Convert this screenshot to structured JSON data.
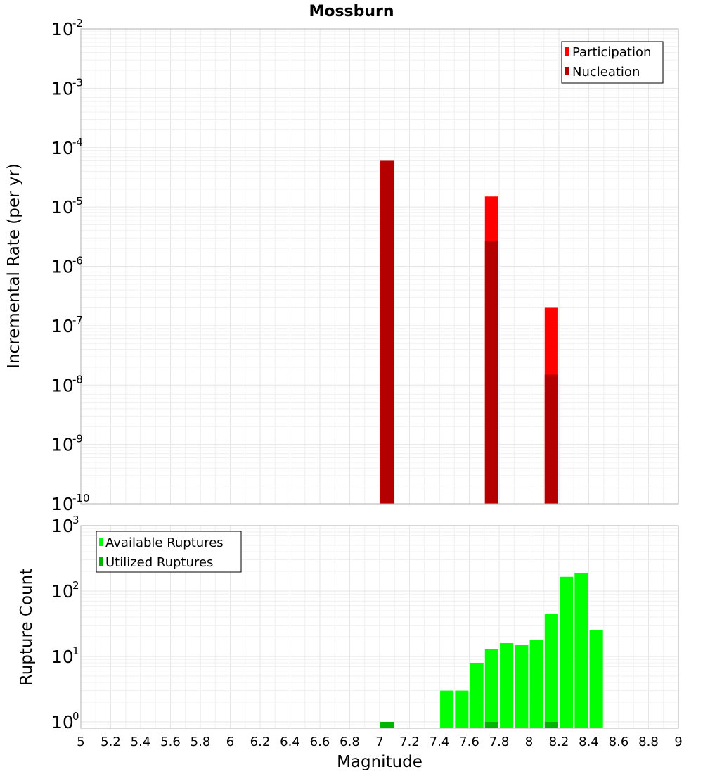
{
  "chart_data": [
    {
      "type": "bar",
      "title": "Mossburn",
      "ylabel": "Incremental Rate (per yr)",
      "yscale": "log",
      "ylim": [
        1e-10,
        0.01
      ],
      "xlim": [
        5,
        9
      ],
      "bar_width": 0.09,
      "grid": true,
      "legend_position": "top-right",
      "ytick_exponents": [
        "-10",
        "-9",
        "-8",
        "-7",
        "-6",
        "-5",
        "-4",
        "-3",
        "-2"
      ],
      "series": [
        {
          "name": "Participation",
          "color": "#ff0000",
          "points": [
            {
              "x": 7.05,
              "y": 6e-05
            },
            {
              "x": 7.75,
              "y": 1.5e-05
            },
            {
              "x": 8.15,
              "y": 2e-07
            }
          ]
        },
        {
          "name": "Nucleation",
          "color": "#b40000",
          "points": [
            {
              "x": 7.05,
              "y": 6e-05
            },
            {
              "x": 7.75,
              "y": 2.7e-06
            },
            {
              "x": 8.15,
              "y": 1.5e-08
            }
          ]
        }
      ]
    },
    {
      "type": "bar",
      "xlabel": "Magnitude",
      "ylabel": "Rupture Count",
      "yscale": "log",
      "ylim": [
        0.8,
        1000
      ],
      "xlim": [
        5,
        9
      ],
      "bar_width": 0.09,
      "grid": true,
      "legend_position": "top-left",
      "xticks": [
        "5",
        "5.2",
        "5.4",
        "5.6",
        "5.8",
        "6",
        "6.2",
        "6.4",
        "6.6",
        "6.8",
        "7",
        "7.2",
        "7.4",
        "7.6",
        "7.8",
        "8",
        "8.2",
        "8.4",
        "8.6",
        "8.8",
        "9"
      ],
      "ytick_exponents": [
        "0",
        "1",
        "2",
        "3"
      ],
      "series": [
        {
          "name": "Available Ruptures",
          "color": "#00ff00",
          "points": [
            {
              "x": 7.05,
              "y": 1
            },
            {
              "x": 7.45,
              "y": 3
            },
            {
              "x": 7.55,
              "y": 3
            },
            {
              "x": 7.65,
              "y": 8
            },
            {
              "x": 7.75,
              "y": 13
            },
            {
              "x": 7.85,
              "y": 16
            },
            {
              "x": 7.95,
              "y": 15
            },
            {
              "x": 8.05,
              "y": 18
            },
            {
              "x": 8.15,
              "y": 45
            },
            {
              "x": 8.25,
              "y": 165
            },
            {
              "x": 8.35,
              "y": 190
            },
            {
              "x": 8.45,
              "y": 25
            }
          ]
        },
        {
          "name": "Utilized Ruptures",
          "color": "#00b400",
          "points": [
            {
              "x": 7.05,
              "y": 1
            },
            {
              "x": 7.75,
              "y": 1
            },
            {
              "x": 8.15,
              "y": 1
            }
          ]
        }
      ]
    }
  ]
}
